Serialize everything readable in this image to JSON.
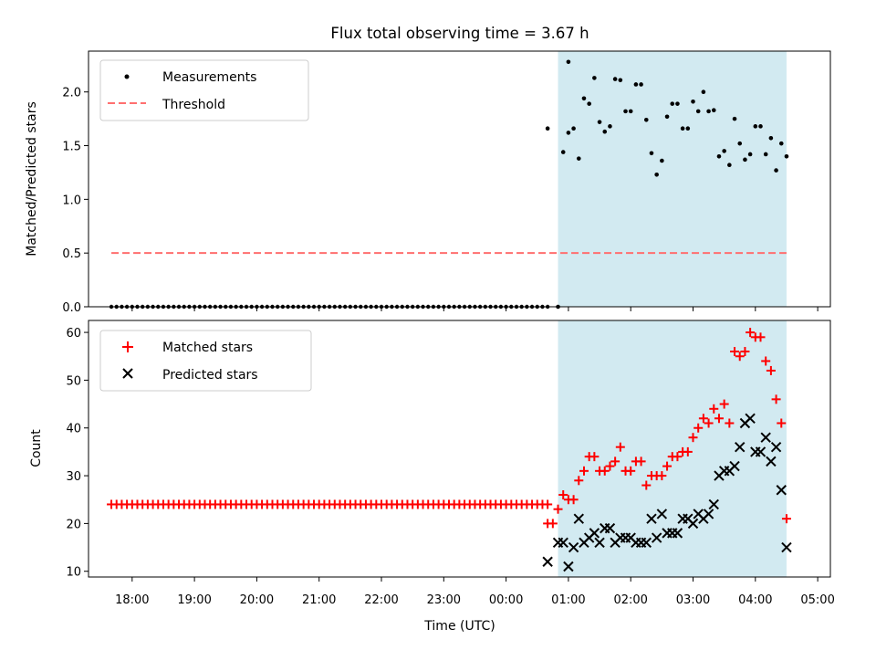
{
  "title": "Flux total observing time = 3.67 h",
  "colors": {
    "shade": "#add8e6",
    "threshold": "#ff6f6f",
    "matched": "#ff0000",
    "predicted": "#000000",
    "measurement": "#000000"
  },
  "chart_data": [
    {
      "type": "scatter",
      "panel": "top",
      "ylabel": "Matched/Predicted stars",
      "xlabel": "",
      "ylim": [
        0,
        2.38
      ],
      "yticks": [
        "0.0",
        "0.5",
        "1.0",
        "1.5",
        "2.0"
      ],
      "x_unit": "hours since 17:00 UTC",
      "shaded_region": {
        "from": "00:50",
        "to": "04:30"
      },
      "legend": [
        {
          "name": "Measurements",
          "marker": "dot"
        },
        {
          "name": "Threshold",
          "marker": "dashed-line"
        }
      ],
      "legend_position": "top-left",
      "threshold": {
        "name": "Threshold",
        "value": 0.5,
        "from": "17:40",
        "to": "04:30"
      },
      "series": [
        {
          "name": "Measurements",
          "zeros": {
            "from": "17:40",
            "to": "00:40",
            "count": 85,
            "value": 0
          },
          "points": [
            [
              "00:50",
              0.0
            ],
            [
              "00:40",
              1.66
            ],
            [
              "00:55",
              1.44
            ],
            [
              "01:00",
              1.62
            ],
            [
              "01:00",
              2.28
            ],
            [
              "01:05",
              1.66
            ],
            [
              "01:10",
              1.38
            ],
            [
              "01:15",
              1.94
            ],
            [
              "01:20",
              1.89
            ],
            [
              "01:25",
              2.13
            ],
            [
              "01:30",
              1.72
            ],
            [
              "01:35",
              1.63
            ],
            [
              "01:40",
              1.68
            ],
            [
              "01:45",
              2.12
            ],
            [
              "01:50",
              2.11
            ],
            [
              "01:55",
              1.82
            ],
            [
              "02:00",
              1.82
            ],
            [
              "02:05",
              2.07
            ],
            [
              "02:10",
              2.07
            ],
            [
              "02:15",
              1.74
            ],
            [
              "02:20",
              1.43
            ],
            [
              "02:25",
              1.23
            ],
            [
              "02:30",
              1.36
            ],
            [
              "02:35",
              1.77
            ],
            [
              "02:40",
              1.89
            ],
            [
              "02:45",
              1.89
            ],
            [
              "02:50",
              1.66
            ],
            [
              "02:55",
              1.66
            ],
            [
              "03:00",
              1.91
            ],
            [
              "03:05",
              1.82
            ],
            [
              "03:10",
              2.0
            ],
            [
              "03:15",
              1.82
            ],
            [
              "03:20",
              1.83
            ],
            [
              "03:25",
              1.4
            ],
            [
              "03:30",
              1.45
            ],
            [
              "03:35",
              1.32
            ],
            [
              "03:40",
              1.75
            ],
            [
              "03:45",
              1.52
            ],
            [
              "03:50",
              1.37
            ],
            [
              "03:55",
              1.42
            ],
            [
              "04:00",
              1.68
            ],
            [
              "04:05",
              1.68
            ],
            [
              "04:10",
              1.42
            ],
            [
              "04:15",
              1.57
            ],
            [
              "04:20",
              1.27
            ],
            [
              "04:25",
              1.52
            ],
            [
              "04:30",
              1.4
            ]
          ]
        }
      ]
    },
    {
      "type": "scatter",
      "panel": "bottom",
      "ylabel": "Count",
      "xlabel": "Time (UTC)",
      "ylim": [
        8.8,
        62.5
      ],
      "yticks": [
        "10",
        "20",
        "30",
        "40",
        "50",
        "60"
      ],
      "xticks": [
        "18:00",
        "19:00",
        "20:00",
        "21:00",
        "22:00",
        "23:00",
        "00:00",
        "01:00",
        "02:00",
        "03:00",
        "04:00",
        "05:00"
      ],
      "x_unit": "hours since 17:00 UTC",
      "shaded_region": {
        "from": "00:50",
        "to": "04:30"
      },
      "legend": [
        {
          "name": "Matched stars",
          "marker": "plus"
        },
        {
          "name": "Predicted stars",
          "marker": "x"
        }
      ],
      "legend_position": "top-left",
      "series": [
        {
          "name": "Matched stars",
          "constant": {
            "from": "17:40",
            "to": "00:40",
            "count": 85,
            "value": 24
          },
          "points": [
            [
              "00:40",
              20
            ],
            [
              "00:45",
              20
            ],
            [
              "00:50",
              23
            ],
            [
              "00:55",
              26
            ],
            [
              "01:00",
              25
            ],
            [
              "01:05",
              25
            ],
            [
              "01:10",
              29
            ],
            [
              "01:15",
              31
            ],
            [
              "01:20",
              34
            ],
            [
              "01:25",
              34
            ],
            [
              "01:30",
              31
            ],
            [
              "01:35",
              31
            ],
            [
              "01:40",
              32
            ],
            [
              "01:45",
              33
            ],
            [
              "01:50",
              36
            ],
            [
              "01:55",
              31
            ],
            [
              "02:00",
              31
            ],
            [
              "02:05",
              33
            ],
            [
              "02:10",
              33
            ],
            [
              "02:15",
              28
            ],
            [
              "02:20",
              30
            ],
            [
              "02:25",
              30
            ],
            [
              "02:30",
              30
            ],
            [
              "02:35",
              32
            ],
            [
              "02:40",
              34
            ],
            [
              "02:45",
              34
            ],
            [
              "02:50",
              35
            ],
            [
              "02:55",
              35
            ],
            [
              "03:00",
              38
            ],
            [
              "03:05",
              40
            ],
            [
              "03:10",
              42
            ],
            [
              "03:15",
              41
            ],
            [
              "03:20",
              44
            ],
            [
              "03:25",
              42
            ],
            [
              "03:30",
              45
            ],
            [
              "03:35",
              41
            ],
            [
              "03:40",
              56
            ],
            [
              "03:45",
              55
            ],
            [
              "03:50",
              56
            ],
            [
              "03:55",
              60
            ],
            [
              "04:00",
              59
            ],
            [
              "04:05",
              59
            ],
            [
              "04:10",
              54
            ],
            [
              "04:15",
              52
            ],
            [
              "04:20",
              46
            ],
            [
              "04:25",
              41
            ],
            [
              "04:30",
              21
            ]
          ]
        },
        {
          "name": "Predicted stars",
          "points": [
            [
              "00:40",
              12
            ],
            [
              "00:50",
              16
            ],
            [
              "00:55",
              16
            ],
            [
              "01:00",
              11
            ],
            [
              "01:05",
              15
            ],
            [
              "01:10",
              21
            ],
            [
              "01:15",
              16
            ],
            [
              "01:20",
              17
            ],
            [
              "01:25",
              18
            ],
            [
              "01:30",
              16
            ],
            [
              "01:35",
              19
            ],
            [
              "01:40",
              19
            ],
            [
              "01:45",
              16
            ],
            [
              "01:50",
              17
            ],
            [
              "01:55",
              17
            ],
            [
              "02:00",
              17
            ],
            [
              "02:05",
              16
            ],
            [
              "02:10",
              16
            ],
            [
              "02:15",
              16
            ],
            [
              "02:20",
              21
            ],
            [
              "02:25",
              17
            ],
            [
              "02:30",
              22
            ],
            [
              "02:35",
              18
            ],
            [
              "02:40",
              18
            ],
            [
              "02:45",
              18
            ],
            [
              "02:50",
              21
            ],
            [
              "02:55",
              21
            ],
            [
              "03:00",
              20
            ],
            [
              "03:05",
              22
            ],
            [
              "03:10",
              21
            ],
            [
              "03:15",
              22
            ],
            [
              "03:20",
              24
            ],
            [
              "03:25",
              30
            ],
            [
              "03:30",
              31
            ],
            [
              "03:35",
              31
            ],
            [
              "03:40",
              32
            ],
            [
              "03:45",
              36
            ],
            [
              "03:50",
              41
            ],
            [
              "03:55",
              42
            ],
            [
              "04:00",
              35
            ],
            [
              "04:05",
              35
            ],
            [
              "04:10",
              38
            ],
            [
              "04:15",
              33
            ],
            [
              "04:20",
              36
            ],
            [
              "04:25",
              27
            ],
            [
              "04:30",
              15
            ]
          ]
        }
      ]
    }
  ]
}
